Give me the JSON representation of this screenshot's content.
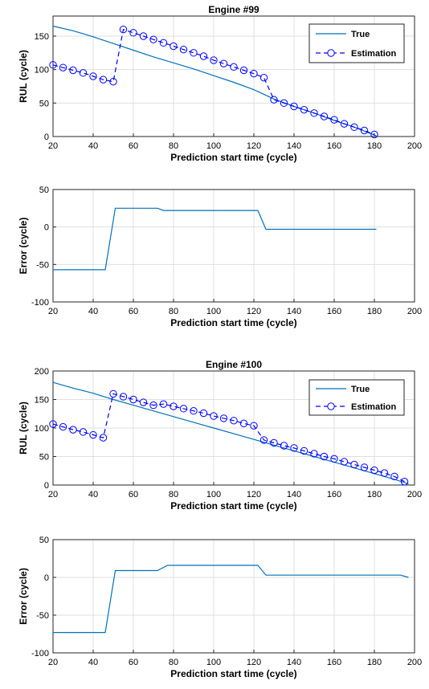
{
  "chart_data": [
    {
      "type": "line",
      "title": "Engine #99",
      "xlabel": "Prediction start time (cycle)",
      "ylabel": "RUL (cycle)",
      "xlim": [
        20,
        200
      ],
      "ylim": [
        0,
        180
      ],
      "xticks": [
        20,
        40,
        60,
        80,
        100,
        120,
        140,
        160,
        180,
        200
      ],
      "yticks": [
        0,
        50,
        100,
        150
      ],
      "grid": true,
      "legend_position": "top-right",
      "series": [
        {
          "name": "True",
          "color": "#0072BD",
          "style": "solid",
          "x": [
            20,
            30,
            40,
            50,
            60,
            70,
            80,
            90,
            100,
            110,
            120,
            130,
            140,
            150,
            160,
            170,
            181
          ],
          "y": [
            165,
            158,
            149,
            139,
            129,
            119,
            110,
            101,
            91,
            81,
            70,
            56,
            45,
            35,
            24,
            14,
            1
          ]
        },
        {
          "name": "Estimation",
          "color": "#0000FF",
          "style": "dashed",
          "marker": "circle",
          "x": [
            20,
            25,
            30,
            35,
            40,
            45,
            50,
            55,
            60,
            65,
            70,
            75,
            80,
            85,
            90,
            95,
            100,
            105,
            110,
            115,
            120,
            125,
            130,
            135,
            140,
            145,
            150,
            155,
            160,
            165,
            170,
            175,
            180
          ],
          "y": [
            107,
            103,
            99,
            95,
            90,
            85,
            82,
            160,
            155,
            150,
            145,
            140,
            135,
            130,
            125,
            120,
            114,
            109,
            104,
            99,
            94,
            88,
            55,
            50,
            45,
            40,
            35,
            30,
            25,
            19,
            14,
            9,
            3
          ]
        }
      ]
    },
    {
      "type": "line",
      "title": "",
      "xlabel": "Prediction start time (cycle)",
      "ylabel": "Error (cycle)",
      "xlim": [
        20,
        200
      ],
      "ylim": [
        -100,
        50
      ],
      "xticks": [
        20,
        40,
        60,
        80,
        100,
        120,
        140,
        160,
        180,
        200
      ],
      "yticks": [
        -100,
        -50,
        0,
        50
      ],
      "grid": true,
      "series": [
        {
          "color": "#0072BD",
          "style": "solid",
          "x": [
            20,
            46,
            51,
            72,
            75,
            122,
            126,
            181
          ],
          "y": [
            -57,
            -57,
            25,
            25,
            22,
            22,
            -3,
            -3
          ]
        }
      ]
    },
    {
      "type": "line",
      "title": "Engine #100",
      "xlabel": "Prediction start time (cycle)",
      "ylabel": "RUL (cycle)",
      "xlim": [
        20,
        200
      ],
      "ylim": [
        0,
        200
      ],
      "xticks": [
        20,
        40,
        60,
        80,
        100,
        120,
        140,
        160,
        180,
        200
      ],
      "yticks": [
        0,
        50,
        100,
        150,
        200
      ],
      "grid": true,
      "legend_position": "top-right",
      "series": [
        {
          "name": "True",
          "color": "#0072BD",
          "style": "solid",
          "x": [
            20,
            30,
            40,
            50,
            60,
            70,
            80,
            90,
            100,
            110,
            120,
            130,
            140,
            150,
            160,
            170,
            180,
            190,
            197
          ],
          "y": [
            180,
            170,
            161,
            150,
            140,
            130,
            120,
            110,
            100,
            90,
            80,
            70,
            60,
            50,
            40,
            30,
            20,
            10,
            2
          ]
        },
        {
          "name": "Estimation",
          "color": "#0000FF",
          "style": "dashed",
          "marker": "circle",
          "x": [
            20,
            25,
            30,
            35,
            40,
            45,
            50,
            55,
            60,
            65,
            70,
            75,
            80,
            85,
            90,
            95,
            100,
            105,
            110,
            115,
            120,
            125,
            130,
            135,
            140,
            145,
            150,
            155,
            160,
            165,
            170,
            175,
            180,
            185,
            190,
            195
          ],
          "y": [
            107,
            102,
            97,
            93,
            88,
            83,
            160,
            155,
            150,
            145,
            140,
            142,
            138,
            134,
            130,
            126,
            121,
            117,
            113,
            108,
            104,
            79,
            74,
            69,
            65,
            60,
            55,
            50,
            46,
            41,
            36,
            31,
            26,
            21,
            15,
            6
          ]
        }
      ]
    },
    {
      "type": "line",
      "title": "",
      "xlabel": "Prediction start time (cycle)",
      "ylabel": "Error (cycle)",
      "xlim": [
        20,
        200
      ],
      "ylim": [
        -100,
        50
      ],
      "xticks": [
        20,
        40,
        60,
        80,
        100,
        120,
        140,
        160,
        180,
        200
      ],
      "yticks": [
        -100,
        -50,
        0,
        50
      ],
      "grid": true,
      "series": [
        {
          "color": "#0072BD",
          "style": "solid",
          "x": [
            20,
            46,
            51,
            72,
            77,
            122,
            126,
            193,
            197
          ],
          "y": [
            -73,
            -73,
            9,
            9,
            16,
            16,
            3,
            3,
            0
          ]
        }
      ]
    }
  ]
}
